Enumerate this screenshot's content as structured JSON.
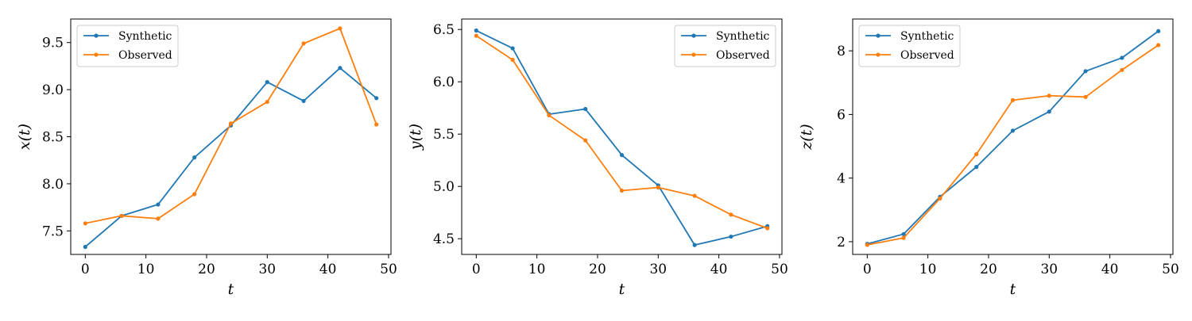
{
  "colors": {
    "synthetic": "#1f77b4",
    "observed": "#ff7f0e"
  },
  "chart_data": [
    {
      "type": "line",
      "xlabel": "t",
      "ylabel": "x(t)",
      "xlim": [
        -2.4,
        50.4
      ],
      "ylim": [
        7.25,
        9.75
      ],
      "xticks": [
        0,
        10,
        20,
        30,
        40,
        50
      ],
      "yticks": [
        7.5,
        8.0,
        8.5,
        9.0,
        9.5
      ],
      "ytick_labels": [
        "7.5",
        "8.0",
        "8.5",
        "9.0",
        "9.5"
      ],
      "legend": "top-left",
      "grid": false,
      "x": [
        0,
        6,
        12,
        18,
        24,
        30,
        36,
        42,
        48
      ],
      "series": [
        {
          "name": "Synthetic",
          "color": "#1f77b4",
          "values": [
            7.33,
            7.66,
            7.78,
            8.28,
            8.62,
            9.08,
            8.88,
            9.23,
            8.91
          ]
        },
        {
          "name": "Observed",
          "color": "#ff7f0e",
          "values": [
            7.58,
            7.66,
            7.63,
            7.89,
            8.64,
            8.87,
            9.49,
            9.65,
            8.63
          ]
        }
      ]
    },
    {
      "type": "line",
      "xlabel": "t",
      "ylabel": "y(t)",
      "xlim": [
        -2.4,
        50.4
      ],
      "ylim": [
        4.35,
        6.6
      ],
      "xticks": [
        0,
        10,
        20,
        30,
        40,
        50
      ],
      "yticks": [
        4.5,
        5.0,
        5.5,
        6.0,
        6.5
      ],
      "ytick_labels": [
        "4.5",
        "5.0",
        "5.5",
        "6.0",
        "6.5"
      ],
      "legend": "top-right",
      "grid": false,
      "x": [
        0,
        6,
        12,
        18,
        24,
        30,
        36,
        42,
        48
      ],
      "series": [
        {
          "name": "Synthetic",
          "color": "#1f77b4",
          "values": [
            6.49,
            6.32,
            5.69,
            5.74,
            5.3,
            5.01,
            4.44,
            4.52,
            4.62
          ]
        },
        {
          "name": "Observed",
          "color": "#ff7f0e",
          "values": [
            6.44,
            6.21,
            5.68,
            5.44,
            4.96,
            4.99,
            4.91,
            4.73,
            4.6
          ]
        }
      ]
    },
    {
      "type": "line",
      "xlabel": "t",
      "ylabel": "z(t)",
      "xlim": [
        -2.4,
        50.4
      ],
      "ylim": [
        1.6,
        9.0
      ],
      "xticks": [
        0,
        10,
        20,
        30,
        40,
        50
      ],
      "yticks": [
        2,
        4,
        6,
        8
      ],
      "ytick_labels": [
        "2",
        "4",
        "6",
        "8"
      ],
      "legend": "top-left",
      "grid": false,
      "x": [
        0,
        6,
        12,
        18,
        24,
        30,
        36,
        42,
        48
      ],
      "series": [
        {
          "name": "Synthetic",
          "color": "#1f77b4",
          "values": [
            1.93,
            2.24,
            3.41,
            4.35,
            5.49,
            6.09,
            7.36,
            7.78,
            8.62
          ]
        },
        {
          "name": "Observed",
          "color": "#ff7f0e",
          "values": [
            1.9,
            2.12,
            3.36,
            4.75,
            6.45,
            6.59,
            6.55,
            7.4,
            8.18
          ]
        }
      ]
    }
  ]
}
